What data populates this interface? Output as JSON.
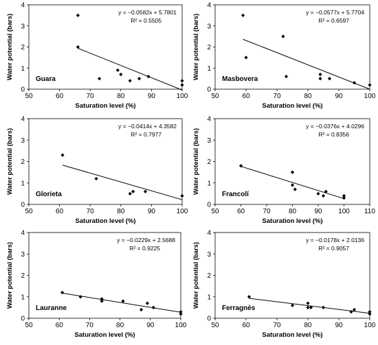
{
  "chart_data": [
    {
      "type": "scatter",
      "panel_label": "Guara",
      "xlabel": "Saturation level (%)",
      "ylabel": "Water potential (bars)",
      "xlim": [
        50,
        100
      ],
      "ylim": [
        0,
        4
      ],
      "xticks": [
        50,
        60,
        70,
        80,
        90,
        100
      ],
      "yticks": [
        0,
        1,
        2,
        3,
        4
      ],
      "equation": "y = −0.0582x + 5.7801",
      "r2": "R² = 0.5505",
      "trendline": {
        "slope": -0.0582,
        "intercept": 5.7801,
        "x_range": [
          66,
          100
        ]
      },
      "points": [
        {
          "x": 66,
          "y": 3.5
        },
        {
          "x": 66,
          "y": 2.0
        },
        {
          "x": 73,
          "y": 0.5
        },
        {
          "x": 79,
          "y": 0.9
        },
        {
          "x": 80,
          "y": 0.7
        },
        {
          "x": 83,
          "y": 0.4
        },
        {
          "x": 86,
          "y": 0.5
        },
        {
          "x": 89,
          "y": 0.6
        },
        {
          "x": 100,
          "y": 0.4
        },
        {
          "x": 100,
          "y": 0.2
        }
      ]
    },
    {
      "type": "scatter",
      "panel_label": "Masbovera",
      "xlabel": "Saturation level (%)",
      "ylabel": "Water potential (bars)",
      "xlim": [
        50,
        100
      ],
      "ylim": [
        0,
        4
      ],
      "xticks": [
        50,
        60,
        70,
        80,
        90,
        100
      ],
      "yticks": [
        0,
        1,
        2,
        3,
        4
      ],
      "equation": "y = −0.0577x + 5.7704",
      "r2": "R² = 0.6597",
      "trendline": {
        "slope": -0.0577,
        "intercept": 5.7704,
        "x_range": [
          59,
          100
        ]
      },
      "points": [
        {
          "x": 59,
          "y": 3.5
        },
        {
          "x": 60,
          "y": 1.5
        },
        {
          "x": 72,
          "y": 2.5
        },
        {
          "x": 73,
          "y": 0.6
        },
        {
          "x": 84,
          "y": 0.7
        },
        {
          "x": 84,
          "y": 0.5
        },
        {
          "x": 87,
          "y": 0.5
        },
        {
          "x": 95,
          "y": 0.3
        },
        {
          "x": 100,
          "y": 0.2
        }
      ]
    },
    {
      "type": "scatter",
      "panel_label": "Glorieta",
      "xlabel": "Saturation level (%)",
      "ylabel": "Water potential (bars)",
      "xlim": [
        50,
        100
      ],
      "ylim": [
        0,
        4
      ],
      "xticks": [
        50,
        60,
        70,
        80,
        90,
        100
      ],
      "yticks": [
        0,
        1,
        2,
        3,
        4
      ],
      "equation": "y = −0.0414x + 4.3582",
      "r2": "R² = 0.7977",
      "trendline": {
        "slope": -0.0414,
        "intercept": 4.3582,
        "x_range": [
          61,
          100
        ]
      },
      "points": [
        {
          "x": 61,
          "y": 2.3
        },
        {
          "x": 72,
          "y": 1.2
        },
        {
          "x": 83,
          "y": 0.5
        },
        {
          "x": 84,
          "y": 0.6
        },
        {
          "x": 88,
          "y": 0.6
        },
        {
          "x": 100,
          "y": 0.4
        }
      ]
    },
    {
      "type": "scatter",
      "panel_label": "Francolí",
      "xlabel": "Saturation level (%)",
      "ylabel": "Water potential (bars)",
      "xlim": [
        50,
        110
      ],
      "ylim": [
        0,
        4
      ],
      "xticks": [
        50,
        60,
        70,
        80,
        90,
        100,
        110
      ],
      "yticks": [
        0,
        1,
        2,
        3,
        4
      ],
      "equation": "y = −0.0376x + 4.0296",
      "r2": "R² = 0.8356",
      "trendline": {
        "slope": -0.0376,
        "intercept": 4.0296,
        "x_range": [
          60,
          100
        ]
      },
      "points": [
        {
          "x": 60,
          "y": 1.8
        },
        {
          "x": 80,
          "y": 1.5
        },
        {
          "x": 80,
          "y": 0.9
        },
        {
          "x": 81,
          "y": 0.7
        },
        {
          "x": 90,
          "y": 0.5
        },
        {
          "x": 92,
          "y": 0.4
        },
        {
          "x": 93,
          "y": 0.6
        },
        {
          "x": 100,
          "y": 0.4
        },
        {
          "x": 100,
          "y": 0.3
        }
      ]
    },
    {
      "type": "scatter",
      "panel_label": "Lauranne",
      "xlabel": "Saturation level (%)",
      "ylabel": "Water potential (bars)",
      "xlim": [
        50,
        100
      ],
      "ylim": [
        0,
        4
      ],
      "xticks": [
        50,
        60,
        70,
        80,
        90,
        100
      ],
      "yticks": [
        0,
        1,
        2,
        3,
        4
      ],
      "equation": "y = −0.0229x + 2.5688",
      "r2": "R² = 0.9225",
      "trendline": {
        "slope": -0.0229,
        "intercept": 2.5688,
        "x_range": [
          61,
          100
        ]
      },
      "points": [
        {
          "x": 61,
          "y": 1.2
        },
        {
          "x": 67,
          "y": 1.0
        },
        {
          "x": 74,
          "y": 0.9
        },
        {
          "x": 74,
          "y": 0.8
        },
        {
          "x": 81,
          "y": 0.8
        },
        {
          "x": 87,
          "y": 0.4
        },
        {
          "x": 89,
          "y": 0.7
        },
        {
          "x": 91,
          "y": 0.5
        },
        {
          "x": 100,
          "y": 0.3
        },
        {
          "x": 100,
          "y": 0.2
        }
      ]
    },
    {
      "type": "scatter",
      "panel_label": "Ferragnès",
      "xlabel": "Saturation level (%)",
      "ylabel": "Water potential (bars)",
      "xlim": [
        50,
        100
      ],
      "ylim": [
        0,
        4
      ],
      "xticks": [
        50,
        60,
        70,
        80,
        90,
        100
      ],
      "yticks": [
        0,
        1,
        2,
        3,
        4
      ],
      "equation": "y = −0.0178x + 2.0136",
      "r2": "R² = 0.9057",
      "trendline": {
        "slope": -0.0178,
        "intercept": 2.0136,
        "x_range": [
          61,
          100
        ]
      },
      "points": [
        {
          "x": 61,
          "y": 1.0
        },
        {
          "x": 75,
          "y": 0.6
        },
        {
          "x": 80,
          "y": 0.7
        },
        {
          "x": 80,
          "y": 0.5
        },
        {
          "x": 81,
          "y": 0.5
        },
        {
          "x": 85,
          "y": 0.5
        },
        {
          "x": 94,
          "y": 0.3
        },
        {
          "x": 95,
          "y": 0.4
        },
        {
          "x": 100,
          "y": 0.3
        },
        {
          "x": 100,
          "y": 0.2
        }
      ]
    }
  ]
}
